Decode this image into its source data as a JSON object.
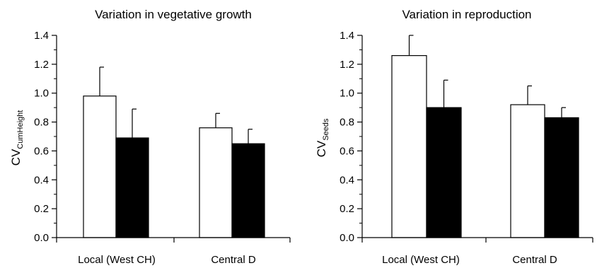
{
  "chart_data": [
    {
      "type": "bar",
      "title": "Variation in vegetative growth",
      "ylabel_main": "CV",
      "ylabel_sub": "CumHeight",
      "categories": [
        "Local (West CH)",
        "Central D"
      ],
      "ylim": [
        0,
        1.4
      ],
      "yticks": [
        "0.0",
        "0.2",
        "0.4",
        "0.6",
        "0.8",
        "1.0",
        "1.2",
        "1.4"
      ],
      "series": [
        {
          "fill": "#ffffff",
          "values": [
            0.98,
            0.76
          ],
          "errors": [
            0.2,
            0.1
          ]
        },
        {
          "fill": "#000000",
          "values": [
            0.69,
            0.65
          ],
          "errors": [
            0.2,
            0.1
          ]
        }
      ],
      "grid": false
    },
    {
      "type": "bar",
      "title": "Variation in reproduction",
      "ylabel_main": "CV",
      "ylabel_sub": "Seeds",
      "categories": [
        "Local (West CH)",
        "Central D"
      ],
      "ylim": [
        0,
        1.4
      ],
      "yticks": [
        "0.0",
        "0.2",
        "0.4",
        "0.6",
        "0.8",
        "1.0",
        "1.2",
        "1.4"
      ],
      "series": [
        {
          "fill": "#ffffff",
          "values": [
            1.26,
            0.92
          ],
          "errors": [
            0.14,
            0.13
          ]
        },
        {
          "fill": "#000000",
          "values": [
            0.9,
            0.83
          ],
          "errors": [
            0.19,
            0.07
          ]
        }
      ],
      "grid": false
    }
  ]
}
